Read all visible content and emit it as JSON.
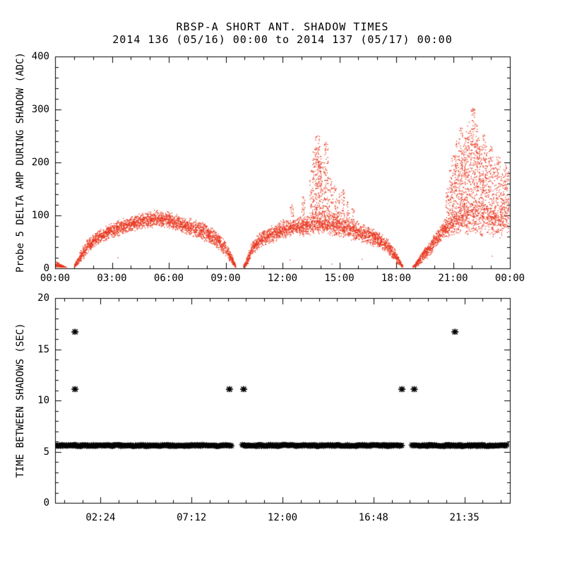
{
  "header": {
    "title": "RBSP-A SHORT ANT. SHADOW TIMES",
    "subtitle": "2014 136 (05/16) 00:00 to 2014 137 (05/17) 00:00"
  },
  "colors": {
    "scatter_red": "#e8341c",
    "axis_black": "#000000",
    "background": "#ffffff"
  },
  "chart_data": [
    {
      "type": "scatter",
      "panel": "top",
      "title": "RBSP-A SHORT ANT. SHADOW TIMES",
      "subtitle": "2014 136 (05/16) 00:00 to 2014 137 (05/17) 00:00",
      "ylabel": "Probe 5 DELTA AMP DURING SHADOW (ADC)",
      "point_color": "#e8341c",
      "marker": "dot",
      "xlim_hours": [
        0,
        24
      ],
      "ylim": [
        0,
        400
      ],
      "x_major_tick_hours": [
        0,
        3,
        6,
        9,
        12,
        15,
        18,
        21,
        24
      ],
      "x_tick_labels": [
        "00:00",
        "03:00",
        "06:00",
        "09:00",
        "12:00",
        "15:00",
        "18:00",
        "21:00",
        "00:00"
      ],
      "x_minor_step_hours": 1,
      "y_major_ticks": [
        0,
        100,
        200,
        300,
        400
      ],
      "y_tick_labels": [
        "0",
        "100",
        "200",
        "300",
        "400"
      ],
      "y_minor_step": 20,
      "grid": false,
      "description": "Dense 1-px dot scatter of probe 5 delta amplitude during antenna shadow; three arch-shaped clusters (approx 00:00-09:30, 10:00-18:20, 18:50-24:00) with spiky bursts near 14:00 (to ~250 ADC) and 21:00-24:00 (to ~300 ADC). Envelope segments are [hour, ADC_low, ADC_high] control points; spikes are [hour_center, half_width_hours, peak_ADC].",
      "envelope_segments": [
        {
          "pph": 260,
          "points": [
            [
              0.03,
              0,
              15
            ],
            [
              0.25,
              0,
              10
            ],
            [
              0.45,
              0,
              5
            ],
            [
              0.62,
              0,
              2
            ]
          ]
        },
        {
          "pph": 300,
          "points": [
            [
              1.02,
              0,
              7
            ],
            [
              1.3,
              8,
              32
            ],
            [
              1.7,
              26,
              56
            ],
            [
              2.1,
              40,
              68
            ],
            [
              2.6,
              50,
              80
            ],
            [
              3.2,
              58,
              90
            ],
            [
              4.0,
              68,
              101
            ],
            [
              4.8,
              74,
              108
            ],
            [
              5.5,
              77,
              111
            ],
            [
              6.1,
              74,
              106
            ],
            [
              6.7,
              66,
              99
            ],
            [
              7.3,
              58,
              93
            ],
            [
              7.9,
              50,
              87
            ],
            [
              8.5,
              38,
              72
            ],
            [
              9.0,
              22,
              52
            ],
            [
              9.35,
              6,
              26
            ],
            [
              9.55,
              0,
              5
            ]
          ]
        },
        {
          "pph": 300,
          "points": [
            [
              9.95,
              0,
              5
            ],
            [
              10.15,
              5,
              25
            ],
            [
              10.4,
              22,
              52
            ],
            [
              10.8,
              38,
              68
            ],
            [
              11.3,
              46,
              80
            ],
            [
              12.0,
              54,
              92
            ],
            [
              12.6,
              58,
              96
            ],
            [
              13.2,
              60,
              100
            ],
            [
              13.7,
              62,
              108
            ],
            [
              14.2,
              62,
              112
            ],
            [
              14.7,
              58,
              104
            ],
            [
              15.2,
              56,
              98
            ],
            [
              15.8,
              50,
              92
            ],
            [
              16.4,
              46,
              84
            ],
            [
              17.0,
              38,
              74
            ],
            [
              17.5,
              28,
              58
            ],
            [
              17.95,
              12,
              36
            ],
            [
              18.35,
              0,
              6
            ]
          ]
        },
        {
          "pph": 300,
          "points": [
            [
              18.88,
              0,
              4
            ],
            [
              19.1,
              3,
              16
            ],
            [
              19.5,
              14,
              40
            ],
            [
              19.9,
              28,
              60
            ],
            [
              20.3,
              45,
              82
            ],
            [
              20.7,
              58,
              100
            ],
            [
              21.1,
              64,
              115
            ],
            [
              21.5,
              64,
              130
            ],
            [
              21.9,
              60,
              142
            ],
            [
              22.3,
              58,
              152
            ],
            [
              22.7,
              55,
              146
            ],
            [
              23.1,
              52,
              136
            ],
            [
              23.5,
              55,
              140
            ],
            [
              23.87,
              58,
              155
            ],
            [
              24.0,
              60,
              160
            ]
          ]
        }
      ],
      "spikes": [
        [
          12.5,
          0.04,
          120
        ],
        [
          13.1,
          0.04,
          135
        ],
        [
          13.55,
          0.05,
          185
        ],
        [
          13.7,
          0.05,
          225
        ],
        [
          13.85,
          0.05,
          250
        ],
        [
          13.97,
          0.04,
          230
        ],
        [
          14.1,
          0.05,
          200
        ],
        [
          14.3,
          0.05,
          238
        ],
        [
          14.5,
          0.05,
          170
        ],
        [
          14.75,
          0.05,
          155
        ],
        [
          15.0,
          0.05,
          140
        ],
        [
          15.2,
          0.04,
          148
        ],
        [
          15.45,
          0.04,
          125
        ],
        [
          15.7,
          0.04,
          112
        ],
        [
          20.7,
          0.04,
          150
        ],
        [
          20.9,
          0.04,
          185
        ],
        [
          21.05,
          0.05,
          212
        ],
        [
          21.2,
          0.05,
          240
        ],
        [
          21.4,
          0.05,
          265
        ],
        [
          21.55,
          0.05,
          230
        ],
        [
          21.7,
          0.05,
          258
        ],
        [
          21.85,
          0.06,
          276
        ],
        [
          22.05,
          0.05,
          302
        ],
        [
          22.2,
          0.05,
          272
        ],
        [
          22.35,
          0.05,
          246
        ],
        [
          22.5,
          0.05,
          230
        ],
        [
          22.65,
          0.05,
          252
        ],
        [
          22.8,
          0.06,
          218
        ],
        [
          23.0,
          0.05,
          230
        ],
        [
          23.2,
          0.05,
          195
        ],
        [
          23.4,
          0.05,
          210
        ],
        [
          23.6,
          0.06,
          178
        ],
        [
          23.78,
          0.05,
          195
        ],
        [
          23.92,
          0.06,
          182
        ]
      ],
      "stray_points": [
        [
          3.32,
          20
        ],
        [
          10.9,
          4
        ],
        [
          12.4,
          16
        ],
        [
          14.6,
          8
        ],
        [
          16.2,
          17
        ],
        [
          23.07,
          23
        ]
      ]
    },
    {
      "type": "scatter",
      "panel": "bottom",
      "ylabel": "TIME BETWEEN SHADOWS (SEC)",
      "point_color": "#000000",
      "marker": "asterisk",
      "xlim_hours": [
        0,
        24
      ],
      "ylim": [
        0,
        20
      ],
      "x_major_tick_hours": [
        2.4,
        7.2,
        12.0,
        16.8,
        21.6
      ],
      "x_tick_labels": [
        "02:24",
        "07:12",
        "12:00",
        "16:48",
        "21:35"
      ],
      "x_minor_step_hours": 0.96,
      "x_minor_offset_hours": 0.48,
      "y_major_ticks": [
        0,
        5,
        10,
        15,
        20
      ],
      "y_tick_labels": [
        "0",
        "5",
        "10",
        "15",
        "20"
      ],
      "y_minor_step": 1,
      "grid": false,
      "description": "Time between successive shadows: a dense solid band of overlapping asterisk markers at ~5.6 s spanning nearly the whole day with two short gaps, plus isolated asterisks at ~11.1 s and ~16.7 s.",
      "band": {
        "value_sec": 5.6,
        "jitter_sec": 0.09,
        "segments_hours": [
          [
            0.0,
            9.32
          ],
          [
            9.88,
            18.34
          ],
          [
            18.83,
            23.87
          ]
        ]
      },
      "outlier_points_hours_sec": [
        [
          1.05,
          16.7
        ],
        [
          1.05,
          11.1
        ],
        [
          9.2,
          11.1
        ],
        [
          9.95,
          11.1
        ],
        [
          18.3,
          11.1
        ],
        [
          18.95,
          11.1
        ],
        [
          21.1,
          16.7
        ]
      ]
    }
  ]
}
